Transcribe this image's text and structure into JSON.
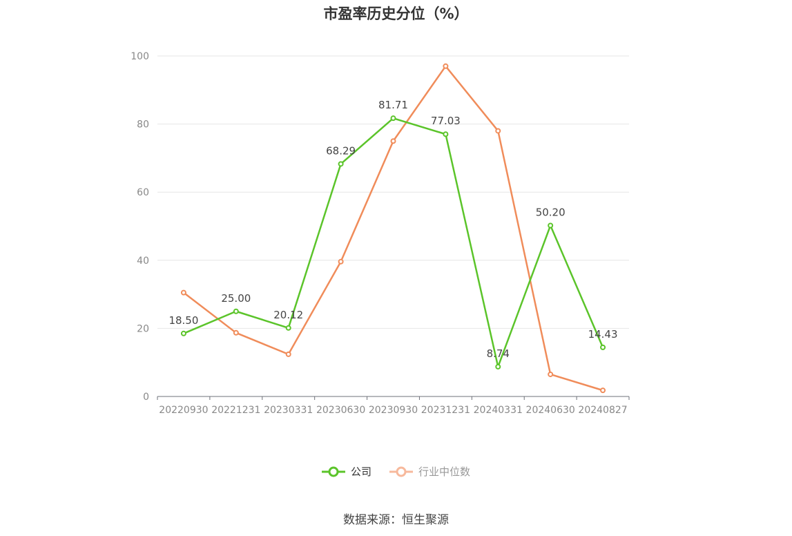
{
  "source_text": "数据来源：恒生聚源",
  "chart_data": {
    "type": "line",
    "title": "市盈率历史分位（%）",
    "categories": [
      "20220930",
      "20221231",
      "20230331",
      "20230630",
      "20230930",
      "20231231",
      "20240331",
      "20240630",
      "20240827"
    ],
    "ylim": [
      0,
      100
    ],
    "yticks": [
      0,
      20,
      40,
      60,
      80,
      100
    ],
    "grid": true,
    "legend_position": "bottom",
    "series": [
      {
        "name": "公司",
        "color": "#5bc42a",
        "values": [
          18.5,
          25.0,
          20.12,
          68.29,
          81.71,
          77.03,
          8.74,
          50.2,
          14.43
        ],
        "labels": [
          "18.50",
          "25.00",
          "20.12",
          "68.29",
          "81.71",
          "77.03",
          "8.74",
          "50.20",
          "14.43"
        ]
      },
      {
        "name": "行业中位数",
        "color": "#f08c5a",
        "legend_color": "#f7b99c",
        "values": [
          30.5,
          18.7,
          12.4,
          39.6,
          75.0,
          97.0,
          78.0,
          6.5,
          1.8
        ]
      }
    ]
  }
}
